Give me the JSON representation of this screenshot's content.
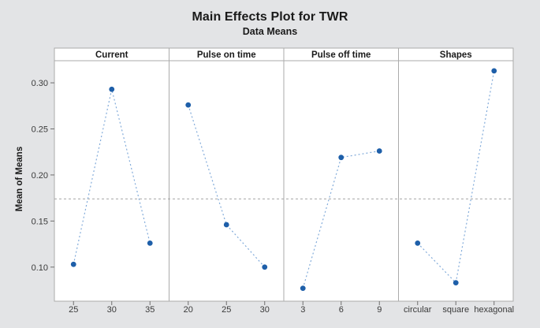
{
  "title": "Main Effects Plot for TWR",
  "subtitle": "Data Means",
  "ylabel": "Mean of Means",
  "colors": {
    "background": "#e3e4e6",
    "panel_fill": "#ffffff",
    "panel_border": "#ababab",
    "marker": "#1e5fa9",
    "series_line": "#82abda",
    "reference_line": "#a3a3a3",
    "axis_text": "#3a3a3a",
    "header_text": "#1a1a1a",
    "tick": "#6e6e6e"
  },
  "chart_data": {
    "type": "line",
    "title": "Main Effects Plot for TWR",
    "subtitle": "Data Means",
    "ylabel": "Mean of Means",
    "ylim": [
      0.063,
      0.324
    ],
    "yticks": [
      0.1,
      0.15,
      0.2,
      0.25,
      0.3
    ],
    "ytick_format_decimals": 2,
    "reference_mean": 0.174,
    "grid": false,
    "legend": "none",
    "panels": [
      {
        "label": "Current",
        "categories": [
          "25",
          "30",
          "35"
        ],
        "values": [
          0.103,
          0.293,
          0.126
        ]
      },
      {
        "label": "Pulse on time",
        "categories": [
          "20",
          "25",
          "30"
        ],
        "values": [
          0.276,
          0.146,
          0.1
        ]
      },
      {
        "label": "Pulse off time",
        "categories": [
          "3",
          "6",
          "9"
        ],
        "values": [
          0.077,
          0.219,
          0.226
        ]
      },
      {
        "label": "Shapes",
        "categories": [
          "circular",
          "square",
          "hexagonal"
        ],
        "values": [
          0.126,
          0.083,
          0.313
        ]
      }
    ]
  }
}
